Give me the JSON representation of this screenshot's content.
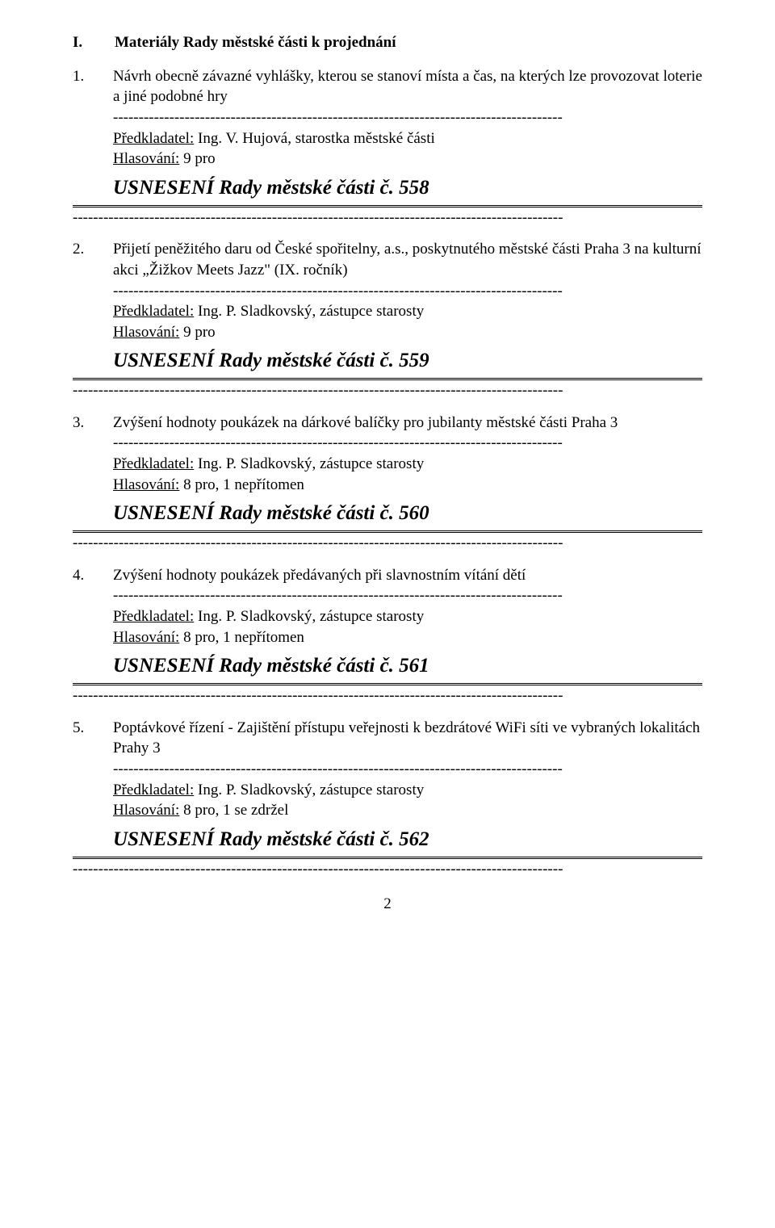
{
  "header": {
    "roman": "I.",
    "title": "Materiály Rady městské části k projednání"
  },
  "dashes_short": "----------------------------------------------------------------------------------------",
  "dashes_long": "------------------------------------------------------------------------------------------------",
  "items": [
    {
      "num": "1.",
      "title": "Návrh obecně závazné vyhlášky, kterou se stanoví místa a čas, na kterých lze provozovat loterie a jiné podobné hry",
      "submitter_label": "Předkladatel:",
      "submitter": " Ing. V. Hujová, starostka městské části",
      "vote_label": "Hlasování:",
      "vote": " 9 pro",
      "resolution": "USNESENÍ Rady městské části č. 558"
    },
    {
      "num": "2.",
      "title": "Přijetí peněžitého daru od České spořitelny, a.s., poskytnutého městské části Praha 3 na kulturní akci „Žižkov Meets Jazz\" (IX. ročník)",
      "submitter_label": "Předkladatel:",
      "submitter": " Ing. P. Sladkovský, zástupce starosty",
      "vote_label": "Hlasování:",
      "vote": " 9 pro",
      "resolution": "USNESENÍ Rady městské části č. 559"
    },
    {
      "num": "3.",
      "title": "Zvýšení hodnoty poukázek na dárkové balíčky pro jubilanty městské části Praha 3",
      "submitter_label": "Předkladatel:",
      "submitter": " Ing. P. Sladkovský, zástupce starosty",
      "vote_label": "Hlasování:",
      "vote": " 8 pro, 1 nepřítomen",
      "resolution": "USNESENÍ Rady městské části č. 560"
    },
    {
      "num": "4.",
      "title": "Zvýšení hodnoty poukázek předávaných při slavnostním vítání dětí",
      "submitter_label": "Předkladatel:",
      "submitter": " Ing. P. Sladkovský, zástupce starosty",
      "vote_label": "Hlasování:",
      "vote": " 8 pro, 1 nepřítomen",
      "resolution": "USNESENÍ Rady městské části č. 561"
    },
    {
      "num": "5.",
      "title": "Poptávkové řízení - Zajištění přístupu veřejnosti k bezdrátové WiFi síti ve vybraných lokalitách Prahy 3",
      "submitter_label": "Předkladatel:",
      "submitter": " Ing. P. Sladkovský, zástupce starosty",
      "vote_label": "Hlasování:",
      "vote": " 8 pro, 1 se zdržel",
      "resolution": "USNESENÍ Rady městské části č. 562"
    }
  ],
  "page_number": "2"
}
